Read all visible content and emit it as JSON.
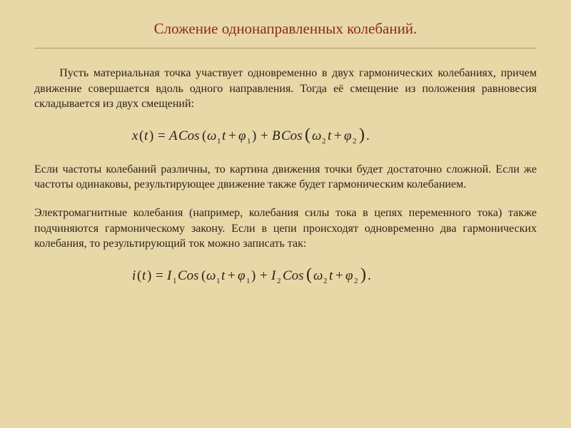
{
  "slide": {
    "background_color": "#e8d8a8",
    "title": {
      "text": "Сложение однонаправленных колебаний.",
      "color": "#8a2a1a",
      "fontsize": 21,
      "align": "center"
    },
    "rule_color": "#b09858",
    "body_color": "#2a2218",
    "body_fontsize": 16,
    "paragraphs": {
      "p1": "Пусть материальная точка участвует одновременно в двух гармонических колебаниях, причем движение совершается вдоль одного направления. Тогда её смещение из положения равновесия складывается из двух смещений:",
      "p2": "Если частоты колебаний различны, то картина движения точки будет достаточно сложной. Если же частоты одинаковы, результирующее движение также будет гармоническим колебанием.",
      "p3": "Электромагнитные колебания (например, колебания силы тока в цепях переменного тока) также подчиняются гармоническому закону. Если в цепи происходят одновременно два гармонических колебания, то результирующий ток можно записать так:"
    },
    "equations": {
      "eq1": {
        "latex": "x(t) = A\\cos(\\omega_1 t + \\varphi_1) + B\\cos(\\omega_2 t + \\varphi_2).",
        "display": "x(t) = ACos(ω₁t + φ₁) + BCos(ω₂t + φ₂).",
        "font": "italic serif",
        "fontsize": 19
      },
      "eq2": {
        "latex": "i(t) = I_1\\cos(\\omega_1 t + \\varphi_1) + I_2\\cos(\\omega_2 t + \\varphi_2).",
        "display": "i(t) = I₁Cos(ω₁t + φ₁) + I₂Cos(ω₂t + φ₂).",
        "font": "italic serif",
        "fontsize": 19
      }
    }
  }
}
